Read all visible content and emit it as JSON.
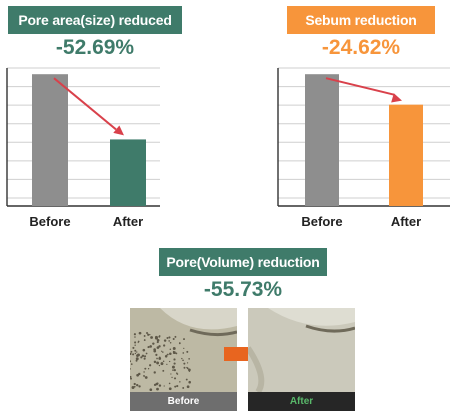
{
  "colors": {
    "green": "#3f7b6a",
    "orange": "#f7953b",
    "gray_bar": "#8e8e8e",
    "arrow_red": "#d9414b",
    "arrow_orange": "#e8651f",
    "grid": "#cfcfcf"
  },
  "chart_data": [
    {
      "type": "bar",
      "title": "Pore area(size) reduced",
      "change": "-52.69%",
      "categories": [
        "Before",
        "After"
      ],
      "values": [
        100,
        47.31
      ],
      "ylim": [
        0,
        105
      ],
      "grid": true,
      "annotation": "arrow from Before to After"
    },
    {
      "type": "bar",
      "title": "Sebum reduction",
      "change": "-24.62%",
      "categories": [
        "Before",
        "After"
      ],
      "values": [
        100,
        75.38
      ],
      "ylim": [
        0,
        105
      ],
      "grid": true,
      "annotation": "arrow from Before to After"
    }
  ],
  "volume": {
    "title": "Pore(Volume) reduction",
    "change": "-55.73%",
    "before_label": "Before",
    "after_label": "After"
  }
}
